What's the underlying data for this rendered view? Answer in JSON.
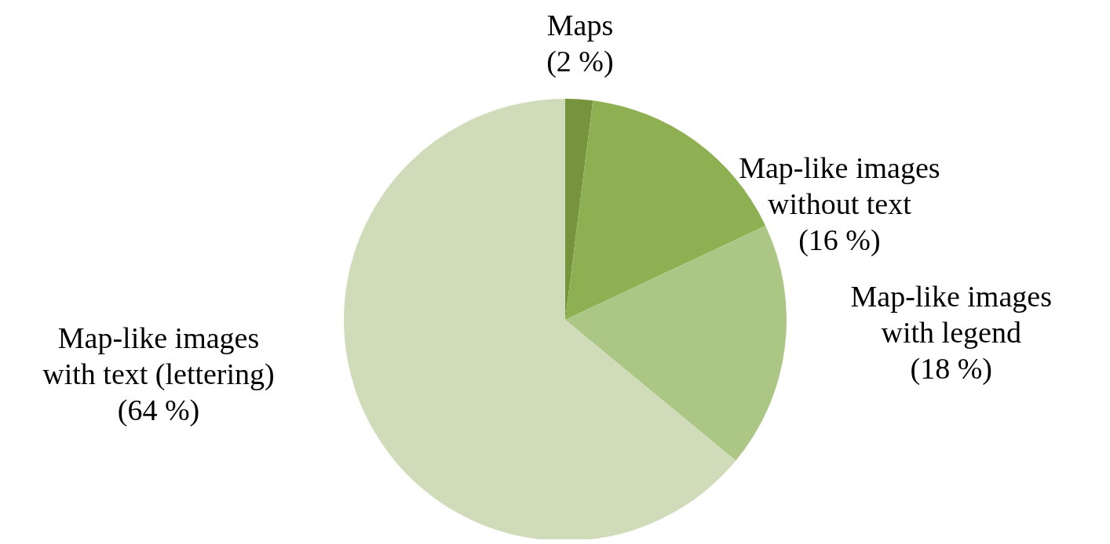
{
  "chart_data": {
    "type": "pie",
    "categories": [
      "Maps",
      "Map-like images without text",
      "Map-like images with legend",
      "Map-like images with text (lettering)"
    ],
    "values": [
      2,
      16,
      18,
      64
    ],
    "colors": [
      "#77933c",
      "#8fb052",
      "#abc685",
      "#d0dcb9"
    ],
    "value_labels": [
      "(2 %)",
      "(16 %)",
      "(18 %)",
      "(64 %)"
    ]
  }
}
